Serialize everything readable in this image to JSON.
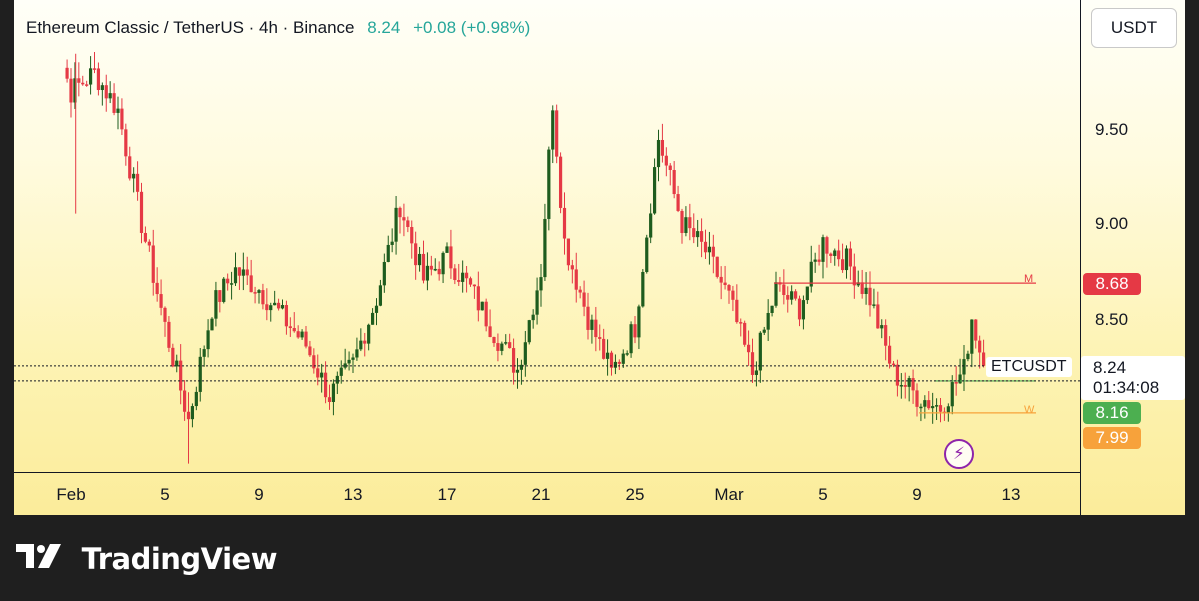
{
  "header": {
    "symbol_title": "Ethereum Classic / TetherUS · 4h · Binance",
    "last_price": "8.24",
    "change": "+0.08 (+0.98%)"
  },
  "price_axis": {
    "currency": "USDT",
    "ticks": [
      "9.50",
      "9.00",
      "8.50"
    ],
    "labels": {
      "level_m": {
        "text": "8.68",
        "color": "#e53945"
      },
      "current": {
        "price": "8.24",
        "countdown": "01:34:08"
      },
      "level_l": {
        "text": "8.16",
        "color": "#4caf50"
      },
      "level_w": {
        "text": "7.99",
        "color": "#f7a23b"
      }
    }
  },
  "symbol_label": "ETCUSDT",
  "level_lines": {
    "m": {
      "tag": "M",
      "price": 8.68
    },
    "w": {
      "tag": "W",
      "price": 7.99
    }
  },
  "time_axis": {
    "ticks": [
      {
        "label": "Feb",
        "bold": true
      },
      {
        "label": "5",
        "bold": false
      },
      {
        "label": "9",
        "bold": false
      },
      {
        "label": "13",
        "bold": false
      },
      {
        "label": "17",
        "bold": false
      },
      {
        "label": "21",
        "bold": false
      },
      {
        "label": "25",
        "bold": false
      },
      {
        "label": "Mar",
        "bold": true
      },
      {
        "label": "5",
        "bold": false
      },
      {
        "label": "9",
        "bold": false
      },
      {
        "label": "13",
        "bold": false
      }
    ]
  },
  "icons": {
    "event": "lightning-icon",
    "brand": "tradingview-logo-icon"
  },
  "brand": {
    "name": "TradingView"
  },
  "colors": {
    "up": "#1e5c1e",
    "down": "#e53945",
    "background_top": "#fffff8",
    "background_bottom": "#fbec9a"
  },
  "chart_data": {
    "type": "candlestick",
    "title": "Ethereum Classic / TetherUS · 4h · Binance",
    "price_range": [
      7.72,
      10.2
    ],
    "price_key_points": [
      {
        "date": "Jan 31",
        "price": 10.1
      },
      {
        "date": "Feb 1",
        "price": 9.7
      },
      {
        "date": "Feb 2",
        "price": 9.8
      },
      {
        "date": "Feb 3",
        "price": 9.6
      },
      {
        "date": "Feb 4",
        "price": 9.0
      },
      {
        "date": "Feb 5",
        "price": 8.45
      },
      {
        "date": "Feb 6",
        "price": 7.95
      },
      {
        "date": "Feb 7",
        "price": 8.55
      },
      {
        "date": "Feb 8",
        "price": 8.75
      },
      {
        "date": "Feb 9",
        "price": 8.65
      },
      {
        "date": "Feb 10",
        "price": 8.5
      },
      {
        "date": "Feb 11",
        "price": 8.35
      },
      {
        "date": "Feb 12",
        "price": 8.08
      },
      {
        "date": "Feb 13",
        "price": 8.25
      },
      {
        "date": "Feb 14",
        "price": 8.6
      },
      {
        "date": "Feb 15",
        "price": 9.1
      },
      {
        "date": "Feb 16",
        "price": 8.7
      },
      {
        "date": "Feb 17",
        "price": 8.82
      },
      {
        "date": "Feb 18",
        "price": 8.65
      },
      {
        "date": "Feb 19",
        "price": 8.42
      },
      {
        "date": "Feb 20",
        "price": 8.22
      },
      {
        "date": "Feb 21",
        "price": 8.75
      },
      {
        "date": "Feb 21 12:00",
        "price": 9.65
      },
      {
        "date": "Feb 22",
        "price": 8.9
      },
      {
        "date": "Feb 23",
        "price": 8.5
      },
      {
        "date": "Feb 24",
        "price": 8.2
      },
      {
        "date": "Feb 25",
        "price": 8.45
      },
      {
        "date": "Feb 26",
        "price": 9.45
      },
      {
        "date": "Feb 27",
        "price": 9.0
      },
      {
        "date": "Feb 28",
        "price": 8.85
      },
      {
        "date": "Feb 29",
        "price": 8.6
      },
      {
        "date": "Mar 1",
        "price": 8.2
      },
      {
        "date": "Mar 2",
        "price": 8.65
      },
      {
        "date": "Mar 3",
        "price": 8.55
      },
      {
        "date": "Mar 4",
        "price": 8.9
      },
      {
        "date": "Mar 5",
        "price": 8.8
      },
      {
        "date": "Mar 6",
        "price": 8.6
      },
      {
        "date": "Mar 7",
        "price": 8.2
      },
      {
        "date": "Mar 8",
        "price": 8.08
      },
      {
        "date": "Mar 9",
        "price": 8.02
      },
      {
        "date": "Mar 10",
        "price": 8.22
      },
      {
        "date": "Mar 10 08:00",
        "price": 8.5
      },
      {
        "date": "Mar 10 20:00",
        "price": 8.24
      }
    ]
  }
}
